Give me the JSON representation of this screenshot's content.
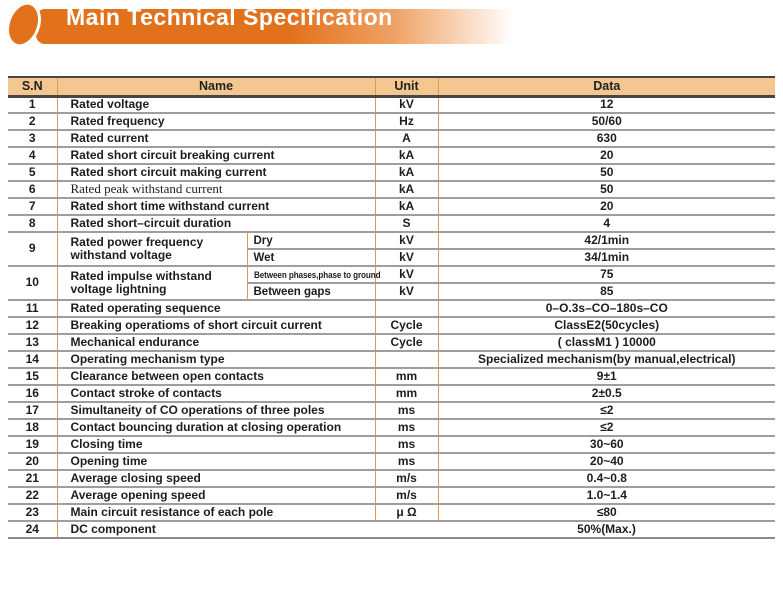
{
  "banner": {
    "title": "Main Technical Specification"
  },
  "table": {
    "columns": [
      "S.N",
      "Name",
      "Unit",
      "Data"
    ],
    "rows": [
      {
        "sn": "1",
        "name": "Rated voltage",
        "unit": "kV",
        "data": "12"
      },
      {
        "sn": "2",
        "name": "Rated frequency",
        "unit": "Hz",
        "data": "50/60"
      },
      {
        "sn": "3",
        "name": "Rated current",
        "unit": "A",
        "data": "630"
      },
      {
        "sn": "4",
        "name": "Rated short circuit breaking current",
        "unit": "kA",
        "data": "20"
      },
      {
        "sn": "5",
        "name": "Rated short circuit making current",
        "unit": "kA",
        "data": "50"
      },
      {
        "sn": "6",
        "name": "Rated peak withstand current",
        "unit": "kA",
        "data": "50",
        "serif": true
      },
      {
        "sn": "7",
        "name": "Rated short time withstand current",
        "unit": "kA",
        "data": "20"
      },
      {
        "sn": "8",
        "name": "Rated short–circuit duration",
        "unit": "S",
        "data": "4"
      },
      {
        "sn": "9",
        "name": "Rated power frequency withstand voltage",
        "sub_rows": [
          {
            "label": "Dry",
            "unit": "kV",
            "data": "42/1min"
          },
          {
            "label": "Wet",
            "unit": "kV",
            "data": "34/1min"
          }
        ]
      },
      {
        "sn": "10",
        "name": "Rated impulse withstand voltage lightning",
        "sub_rows": [
          {
            "label": "Between phases,phase to ground",
            "unit": "kV",
            "data": "75",
            "small": true
          },
          {
            "label": "Between gaps",
            "unit": "kV",
            "data": "85"
          }
        ]
      },
      {
        "sn": "11",
        "name": "Rated operating sequence",
        "unit": "",
        "data": "0–O.3s–CO–180s–CO"
      },
      {
        "sn": "12",
        "name": "Breaking operatioms of short circuit current",
        "unit": "Cycle",
        "data": "ClassE2(50cycles)"
      },
      {
        "sn": "13",
        "name": "Mechanical endurance",
        "unit": "Cycle",
        "data": "( classM1 ) 10000"
      },
      {
        "sn": "14",
        "name": "Operating mechanism type",
        "unit": "",
        "data": "Specialized mechanism(by manual,electrical)"
      },
      {
        "sn": "15",
        "name": "Clearance between open contacts",
        "unit": "mm",
        "data": "9±1"
      },
      {
        "sn": "16",
        "name": "Contact stroke of contacts",
        "unit": "mm",
        "data": "2±0.5"
      },
      {
        "sn": "17",
        "name": "Simultaneity of CO operations of three poles",
        "unit": "ms",
        "data": "≤2"
      },
      {
        "sn": "18",
        "name": "Contact bouncing duration at closing operation",
        "unit": "ms",
        "data": "≤2"
      },
      {
        "sn": "19",
        "name": "Closing time",
        "unit": "ms",
        "data": "30~60"
      },
      {
        "sn": "20",
        "name": "Opening time",
        "unit": "ms",
        "data": "20~40"
      },
      {
        "sn": "21",
        "name": "Average closing speed",
        "unit": "m/s",
        "data": "0.4~0.8"
      },
      {
        "sn": "22",
        "name": "Average opening speed",
        "unit": "m/s",
        "data": "1.0~1.4"
      },
      {
        "sn": "23",
        "name": "Main circuit resistance of each pole",
        "unit": "μ Ω",
        "data": "≤80"
      },
      {
        "sn": "24",
        "name": "DC component",
        "data": "50%(Max.)",
        "merged": true
      }
    ]
  },
  "colors": {
    "banner_orange": "#E2711C",
    "header_bg": "#F3C78F",
    "divider_orange": "#E09A52",
    "row_line": "#9E9E9E",
    "header_line": "#464646",
    "text": "#1D1D1D",
    "title_text": "#FFFFFF"
  }
}
